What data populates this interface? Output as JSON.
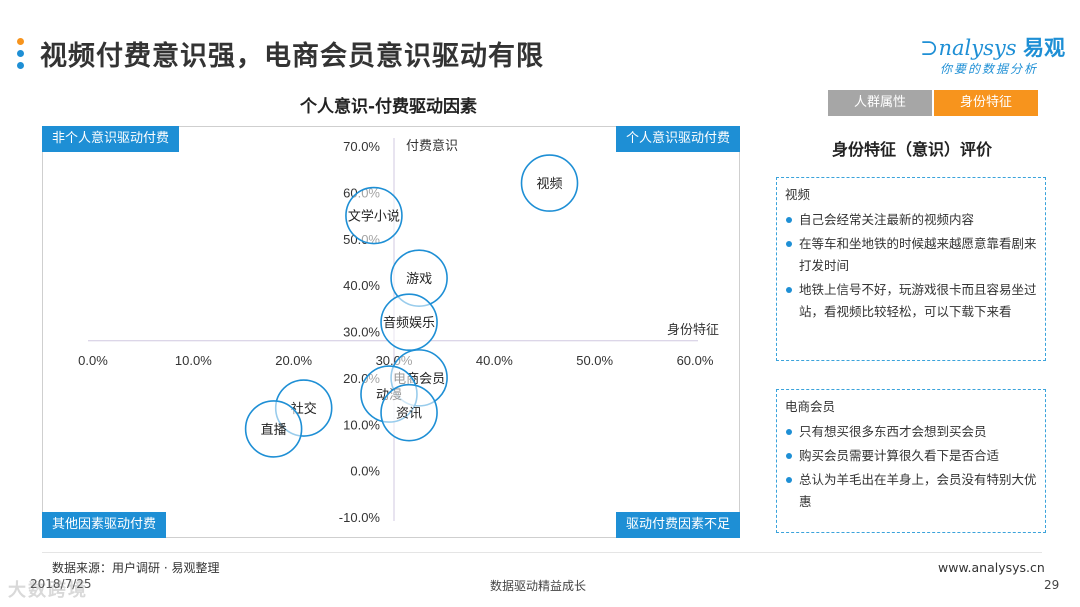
{
  "page": {
    "title": "视频付费意识强，电商会员意识驱动有限",
    "dot_colors": [
      "#F7941D",
      "#1E8FD5",
      "#1E8FD5"
    ]
  },
  "logo": {
    "main": "nalysys",
    "cn": "易观",
    "sub": "你要的数据分析"
  },
  "tabs": [
    {
      "label": "人群属性",
      "active": false
    },
    {
      "label": "身份特征",
      "active": true
    }
  ],
  "chart_heading": "个人意识-付费驱动因素",
  "quadrants": {
    "top_left": "非个人意识驱动付费",
    "top_right": "个人意识驱动付费",
    "bottom_left": "其他因素驱动付费",
    "bottom_right": "驱动付费因素不足"
  },
  "chart_data": {
    "type": "scatter",
    "title": "个人意识-付费驱动因素",
    "xlabel": "身份特征",
    "ylabel": "付费意识",
    "xlim": [
      0,
      0.6
    ],
    "ylim": [
      -0.1,
      0.7
    ],
    "x_ticks": [
      "0.0%",
      "10.0%",
      "20.0%",
      "30.0%",
      "40.0%",
      "50.0%",
      "60.0%"
    ],
    "y_ticks": [
      "70.0%",
      "60.0%",
      "50.0%",
      "40.0%",
      "30.0%",
      "20.0%",
      "10.0%",
      "0.0%",
      "-10.0%"
    ],
    "axis_cross": {
      "x": 0.3,
      "y": 0.28
    },
    "points": [
      {
        "label": "视频",
        "x": 0.455,
        "y": 0.62
      },
      {
        "label": "文学小说",
        "x": 0.28,
        "y": 0.55
      },
      {
        "label": "游戏",
        "x": 0.325,
        "y": 0.415
      },
      {
        "label": "音频娱乐",
        "x": 0.315,
        "y": 0.32
      },
      {
        "label": "电商会员",
        "x": 0.325,
        "y": 0.2
      },
      {
        "label": "动漫",
        "x": 0.295,
        "y": 0.165
      },
      {
        "label": "资讯",
        "x": 0.315,
        "y": 0.125
      },
      {
        "label": "社交",
        "x": 0.21,
        "y": 0.135
      },
      {
        "label": "直播",
        "x": 0.18,
        "y": 0.09
      }
    ],
    "colors": {
      "bubble_stroke": "#1E8FD5",
      "axis": "#d0c8e0"
    }
  },
  "panel": {
    "title": "身份特征（意识）评价",
    "sections": [
      {
        "heading": "视频",
        "bullets": [
          "自己会经常关注最新的视频内容",
          "在等车和坐地铁的时候越来越愿意靠看剧来打发时间",
          "地铁上信号不好，玩游戏很卡而且容易坐过站，看视频比较轻松，可以下载下来看"
        ]
      },
      {
        "heading": "电商会员",
        "bullets": [
          "只有想买很多东西才会想到买会员",
          "购买会员需要计算很久看下是否合适",
          "总认为羊毛出在羊身上，会员没有特别大优惠"
        ]
      }
    ]
  },
  "footer": {
    "source": "数据来源：用户调研 · 易观整理",
    "date": "2018/7/25",
    "center": "数据驱动精益成长",
    "website": "www.analysys.cn",
    "page_number": "29",
    "watermark": "大数跨境"
  }
}
